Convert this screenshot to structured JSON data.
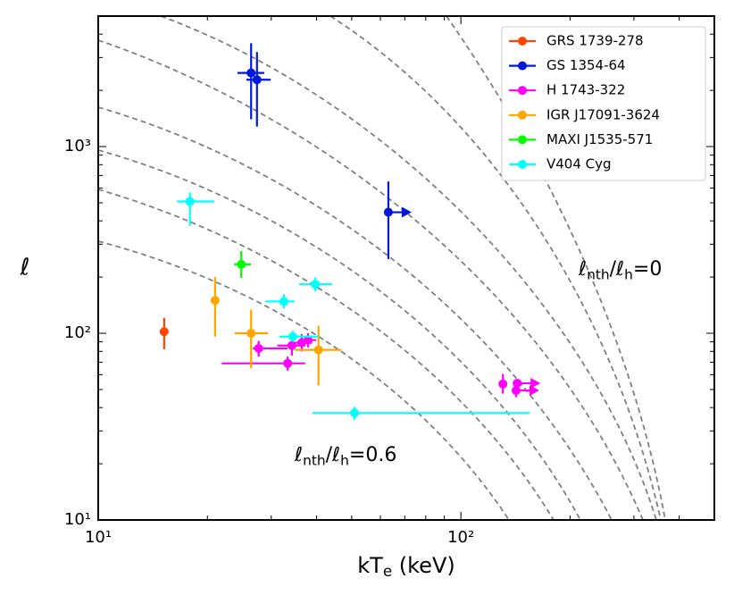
{
  "chart_data": {
    "type": "scatter",
    "x_label": [
      {
        "text": "kT"
      },
      {
        "text": "e",
        "sub": true
      },
      {
        "text": " (keV)"
      }
    ],
    "y_label": "ℓ",
    "xscale": "log",
    "yscale": "log",
    "xlim": [
      10,
      500
    ],
    "ylim": [
      10,
      5000
    ],
    "xticks": [
      {
        "value": 10,
        "label": "10¹"
      },
      {
        "value": 100,
        "label": "10²"
      }
    ],
    "yticks": [
      {
        "value": 10,
        "label": "10¹"
      },
      {
        "value": 100,
        "label": "10²"
      },
      {
        "value": 1000,
        "label": "10³"
      }
    ],
    "xminorticks": [
      20,
      30,
      40,
      50,
      60,
      70,
      80,
      90,
      200,
      300,
      400
    ],
    "yminorticks": [
      20,
      30,
      40,
      50,
      60,
      70,
      80,
      90,
      200,
      300,
      400,
      500,
      600,
      700,
      800,
      900,
      2000,
      3000,
      4000
    ],
    "legend": "upper right",
    "annotations": [
      {
        "segments": [
          {
            "text": "ℓ"
          },
          {
            "text": "nth",
            "sub": true
          },
          {
            "text": "/ℓ"
          },
          {
            "text": "h",
            "sub": true
          },
          {
            "text": "=0"
          }
        ]
      },
      {
        "segments": [
          {
            "text": "ℓ"
          },
          {
            "text": "nth",
            "sub": true
          },
          {
            "text": "/ℓ"
          },
          {
            "text": "h",
            "sub": true
          },
          {
            "text": "=0.6"
          }
        ]
      }
    ],
    "series": [
      {
        "name": "GRS 1739-278",
        "color": "#ff4500",
        "x": [
          15.2
        ],
        "values": [
          102
        ],
        "xerr": [
          null
        ],
        "yerr": [
          [
            20,
            19
          ]
        ],
        "x_lower_limit": [
          false
        ]
      },
      {
        "name": "GS 1354-64",
        "color": "#0018d8",
        "x": [
          26.4,
          27.4,
          63.1
        ],
        "values": [
          2480,
          2280,
          445
        ],
        "xerr": [
          [
            2.2,
            2.3
          ],
          [
            1.8,
            2.5
          ],
          null
        ],
        "yerr": [
          [
            1080,
            1100
          ],
          [
            1000,
            930
          ],
          [
            195,
            205
          ]
        ],
        "x_lower_limit": [
          false,
          false,
          true
        ]
      },
      {
        "name": "H 1743-322",
        "color": "#ff00ff",
        "x": [
          27.7,
          34.2,
          36.4,
          37.9,
          33.3,
          130.6,
          143,
          142
        ],
        "values": [
          83,
          86,
          89,
          92,
          69,
          53.5,
          54,
          49.4
        ],
        "xerr": [
          [
            1,
            5.6
          ],
          [
            3,
            3
          ],
          [
            2.5,
            2.5
          ],
          [
            2,
            2
          ],
          [
            11.4,
            3.9
          ],
          null,
          null,
          null
        ],
        "yerr": [
          [
            8,
            8
          ],
          [
            10,
            10
          ],
          [
            9,
            10
          ],
          [
            8,
            8
          ],
          [
            6,
            6
          ],
          [
            6,
            7
          ],
          null,
          [
            4,
            5
          ]
        ],
        "x_lower_limit": [
          false,
          false,
          false,
          false,
          false,
          false,
          true,
          true
        ]
      },
      {
        "name": "IGR J17091-3624",
        "color": "#ffa500",
        "x": [
          21.0,
          26.4,
          40.5
        ],
        "values": [
          150,
          100,
          81.5
        ],
        "xerr": [
          null,
          [
            2.6,
            3
          ],
          [
            5.7,
            6.3
          ]
        ],
        "yerr": [
          [
            54,
            50
          ],
          [
            35,
            34
          ],
          [
            29,
            28
          ]
        ],
        "x_lower_limit": [
          false,
          false,
          false
        ]
      },
      {
        "name": "MAXI J1535-571",
        "color": "#00ff00",
        "x": [
          24.8
        ],
        "values": [
          234
        ],
        "xerr": [
          [
            1.1,
            1.6
          ]
        ],
        "yerr": [
          [
            36,
            42
          ]
        ],
        "x_lower_limit": [
          false
        ]
      },
      {
        "name": "V404 Cyg",
        "color": "#00ffff",
        "x": [
          17.9,
          32.5,
          39.7,
          34.4,
          50.9
        ],
        "values": [
          508,
          148,
          183,
          96,
          37.4
        ],
        "xerr": [
          [
            1.4,
            3.0
          ],
          [
            3.6,
            2.3
          ],
          [
            3.9,
            4.5
          ],
          [
            2.8,
            6.1
          ],
          [
            11.9,
            104
          ]
        ],
        "yerr": [
          [
            131,
            60
          ],
          [
            12,
            14
          ],
          [
            15,
            16
          ],
          [
            6,
            7
          ],
          [
            3,
            3
          ]
        ],
        "x_lower_limit": [
          false,
          false,
          false,
          false,
          false
        ]
      }
    ]
  }
}
